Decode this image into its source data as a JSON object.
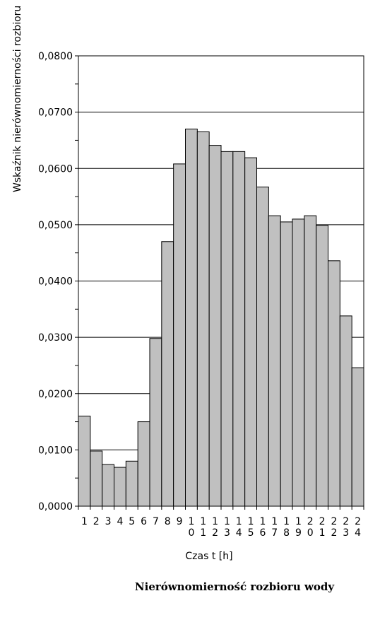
{
  "chart_data": {
    "type": "bar",
    "title": "Nierównomierność rozbioru wody",
    "xlabel": "Czas t [h]",
    "ylabel": "Wskaźnik nierównomierności rozbioru",
    "ylim": [
      0,
      0.08
    ],
    "yticks": [
      "0,0000",
      "0,0100",
      "0,0200",
      "0,0300",
      "0,0400",
      "0,0500",
      "0,0600",
      "0,0700",
      "0,0800"
    ],
    "grid": true,
    "categories": [
      "1",
      "2",
      "3",
      "4",
      "5",
      "6",
      "7",
      "8",
      "9",
      "10",
      "11",
      "12",
      "13",
      "14",
      "15",
      "16",
      "17",
      "18",
      "19",
      "20",
      "21",
      "22",
      "23",
      "24"
    ],
    "values": [
      0.016,
      0.0098,
      0.0074,
      0.0069,
      0.008,
      0.015,
      0.0298,
      0.047,
      0.0608,
      0.067,
      0.0665,
      0.0641,
      0.063,
      0.063,
      0.0619,
      0.0567,
      0.0516,
      0.0505,
      0.051,
      0.0516,
      0.0499,
      0.0436,
      0.0338,
      0.0246
    ],
    "bar_color": "#c0c0c0",
    "bar_edge_color": "#000000"
  }
}
